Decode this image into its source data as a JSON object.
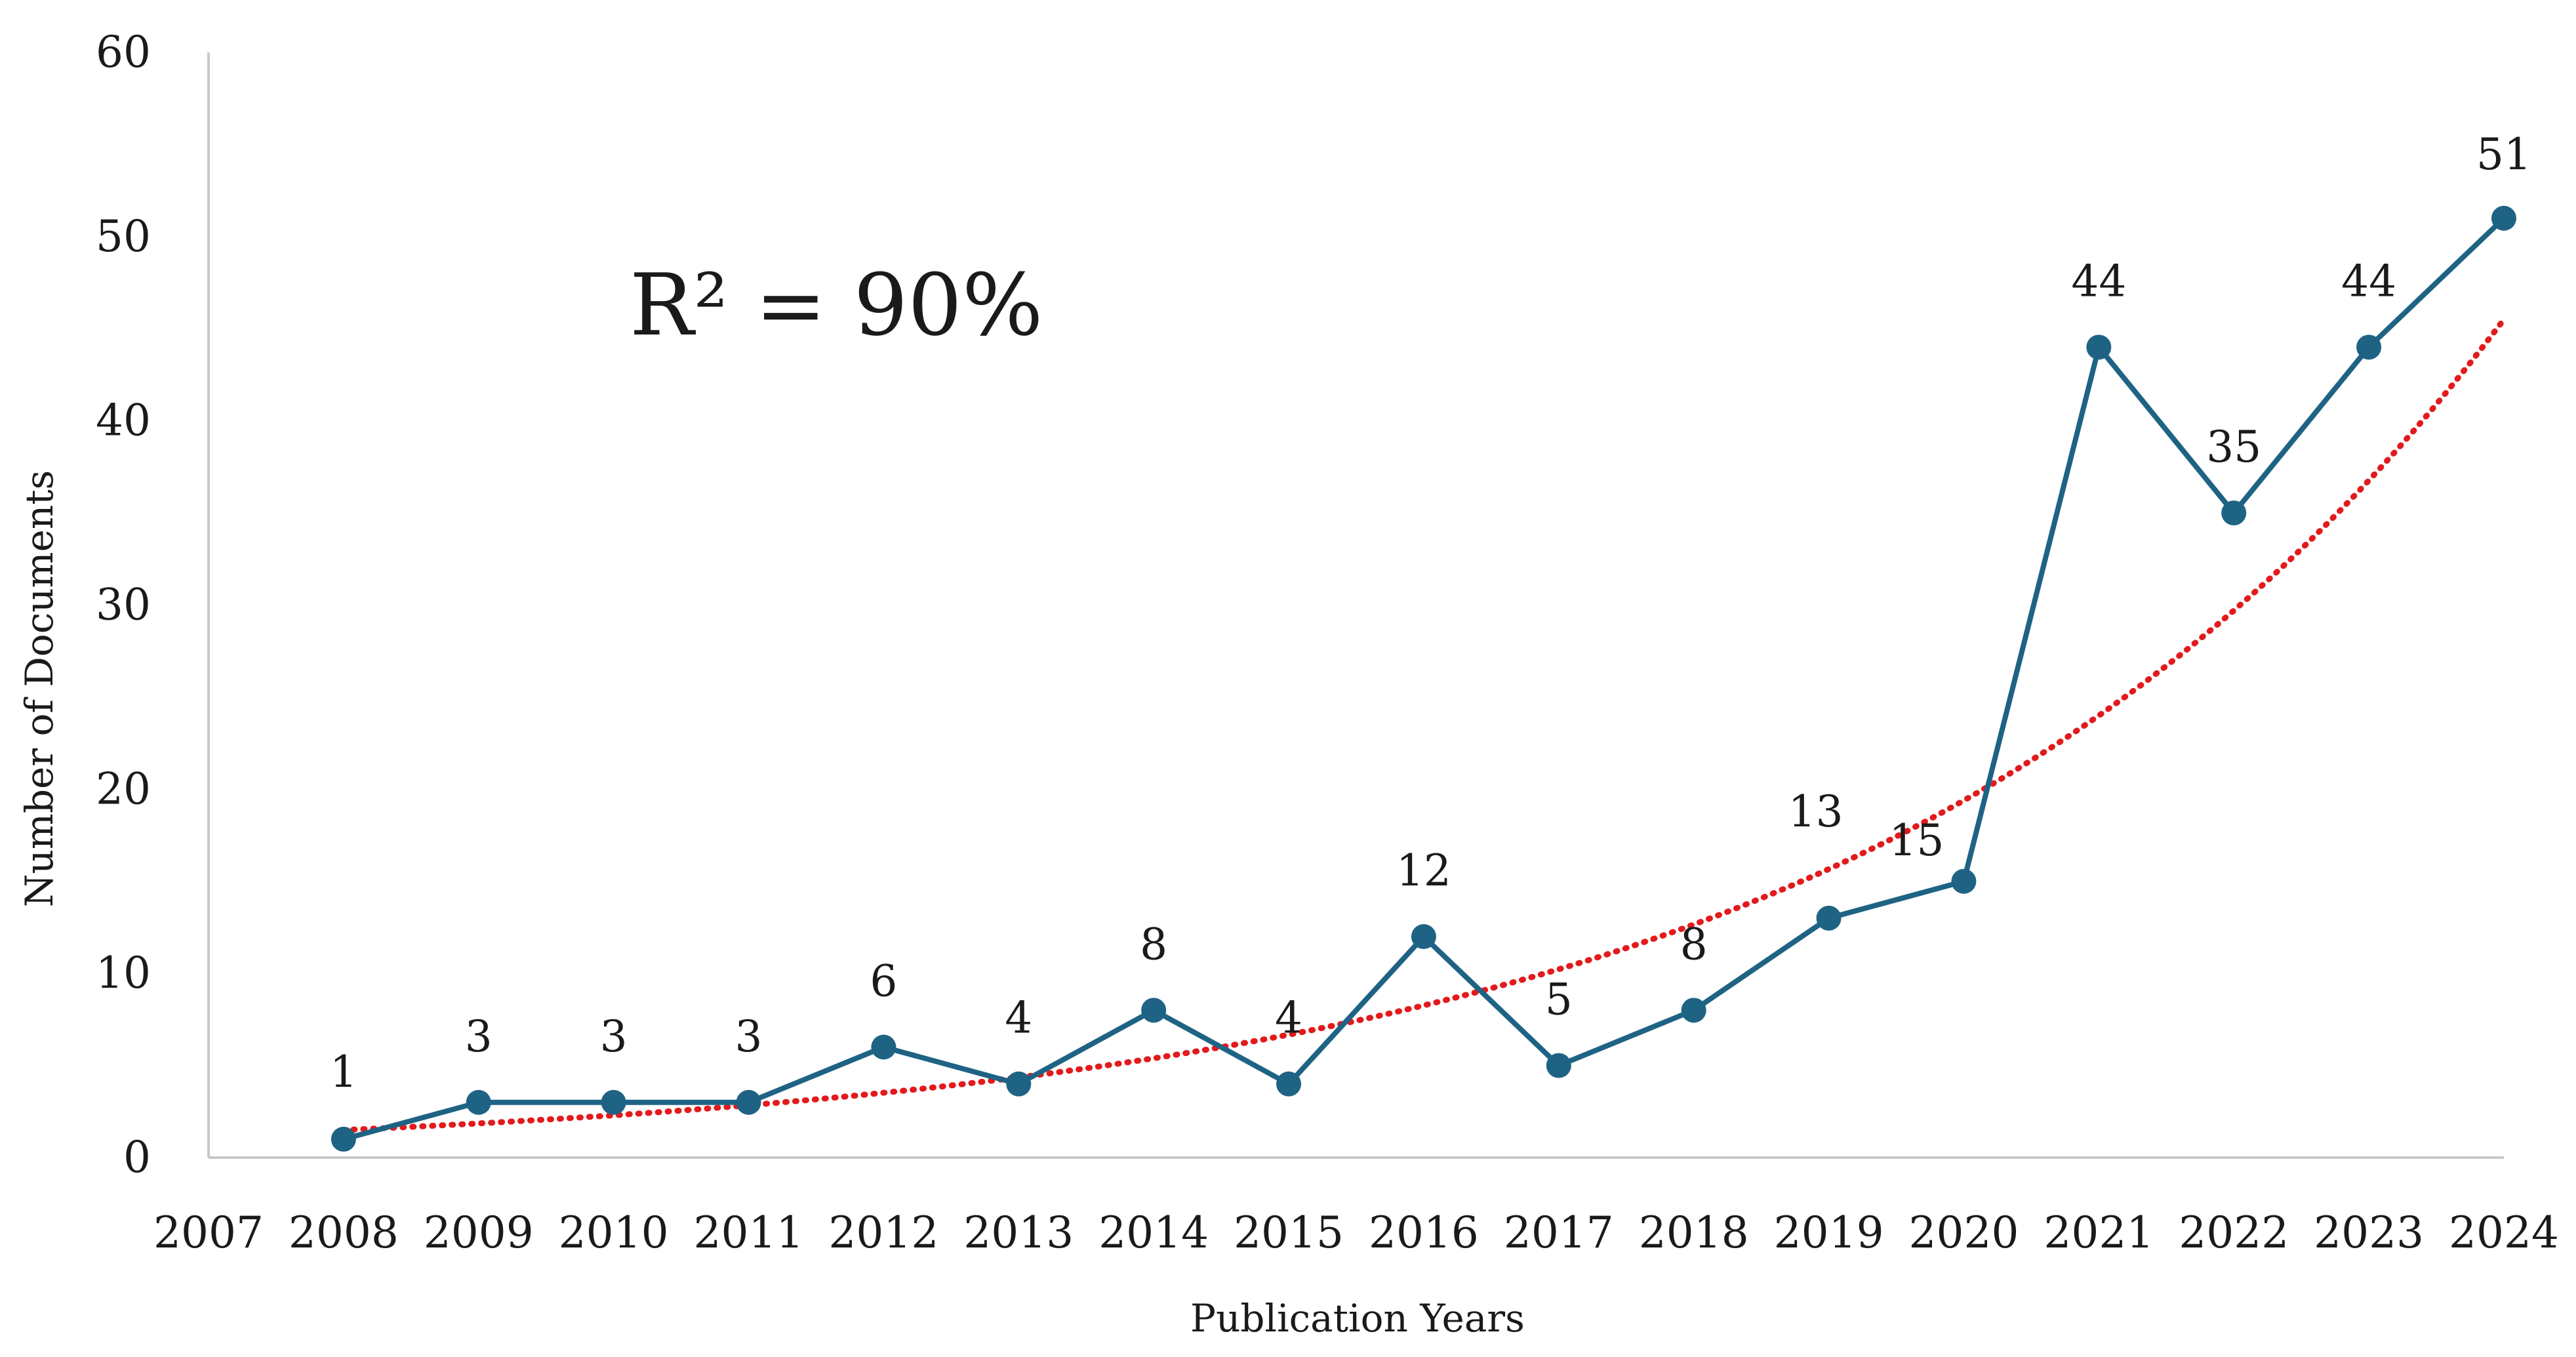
{
  "chart_data": {
    "type": "line",
    "title": "",
    "xlabel": "Publication Years",
    "ylabel": "Number of Documents",
    "x": [
      2008,
      2009,
      2010,
      2011,
      2012,
      2013,
      2014,
      2015,
      2016,
      2017,
      2018,
      2019,
      2020,
      2021,
      2022,
      2023,
      2024
    ],
    "xlim": [
      2007,
      2024
    ],
    "x_ticks": [
      "2007",
      "2008",
      "2009",
      "2010",
      "2011",
      "2012",
      "2013",
      "2014",
      "2015",
      "2016",
      "2017",
      "2018",
      "2019",
      "2020",
      "2021",
      "2022",
      "2023",
      "2024"
    ],
    "ylim": [
      0,
      60
    ],
    "y_ticks": [
      "0",
      "10",
      "20",
      "30",
      "40",
      "50",
      "60"
    ],
    "grid": false,
    "series": [
      {
        "name": "Documents",
        "values": [
          1,
          3,
          3,
          3,
          6,
          4,
          8,
          4,
          12,
          5,
          8,
          13,
          15,
          44,
          35,
          44,
          51
        ],
        "color": "#1f6384",
        "data_labels": [
          "1",
          "3",
          "3",
          "3",
          "6",
          "4",
          "8",
          "4",
          "12",
          "5",
          "8",
          "13",
          "15",
          "44",
          "35",
          "44",
          "51"
        ]
      }
    ],
    "trendline": {
      "type": "exponential",
      "color": "#e31a1c",
      "start_value": 1.5,
      "end_value": 45.5,
      "annotation": "R² = 90%"
    }
  }
}
